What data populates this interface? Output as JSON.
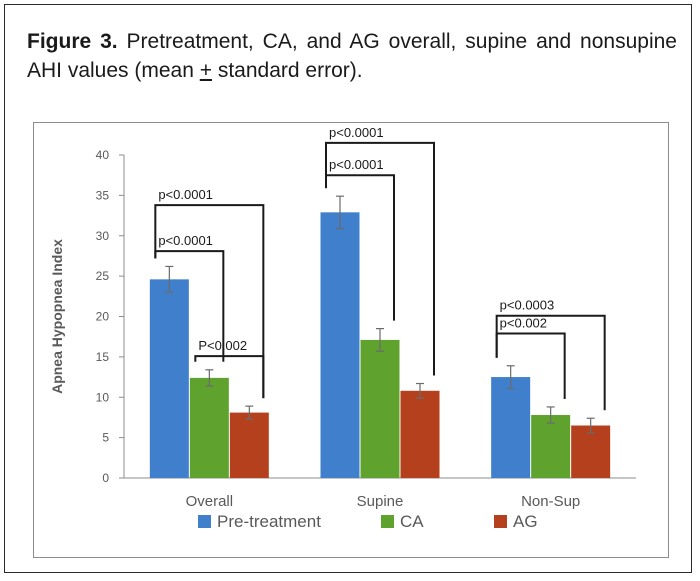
{
  "figure": {
    "label": "Figure 3.",
    "caption_before": " Pretreatment, CA, and AG overall, supine and nonsupine AHI values (mean ",
    "caption_pm": "+",
    "caption_after": " standard error)."
  },
  "chart_data": {
    "type": "bar",
    "categories": [
      "Overall",
      "Supine",
      "Non-Sup"
    ],
    "series": [
      {
        "name": "Pre-treatment",
        "values": [
          24.6,
          32.9,
          12.5
        ],
        "errors": [
          1.6,
          2.0,
          1.4
        ],
        "color": "#3f7fcb"
      },
      {
        "name": "CA",
        "values": [
          12.4,
          17.1,
          7.8
        ],
        "errors": [
          1.0,
          1.4,
          1.0
        ],
        "color": "#5fa32e"
      },
      {
        "name": "AG",
        "values": [
          8.1,
          10.8,
          6.5
        ],
        "errors": [
          0.8,
          0.9,
          0.9
        ],
        "color": "#b5401e"
      }
    ],
    "ylabel": "Apnea Hypopnea Index",
    "xlabel": "",
    "ylim": [
      0,
      40
    ],
    "yticks": [
      0,
      5,
      10,
      15,
      20,
      25,
      30,
      35,
      40
    ],
    "grid": false,
    "legend": "bottom",
    "annotations": [
      {
        "text": "p<0.0001",
        "category": 0,
        "from_series": 0,
        "to_series": 1,
        "level": 28.1
      },
      {
        "text": "p<0.0001",
        "category": 0,
        "from_series": 0,
        "to_series": 2,
        "level": 33.8
      },
      {
        "text": "P<0.002",
        "category": 0,
        "from_series": 1,
        "to_series": 2,
        "level": 15.1
      },
      {
        "text": "p<0.0001",
        "category": 1,
        "from_series": 0,
        "to_series": 1,
        "level": 37.5
      },
      {
        "text": "p<0.0001",
        "category": 1,
        "from_series": 0,
        "to_series": 2,
        "level": 41.5
      },
      {
        "text": "p<0.002",
        "category": 2,
        "from_series": 0,
        "to_series": 1,
        "level": 17.9
      },
      {
        "text": "p<0.0003",
        "category": 2,
        "from_series": 0,
        "to_series": 2,
        "level": 20.1
      }
    ]
  }
}
